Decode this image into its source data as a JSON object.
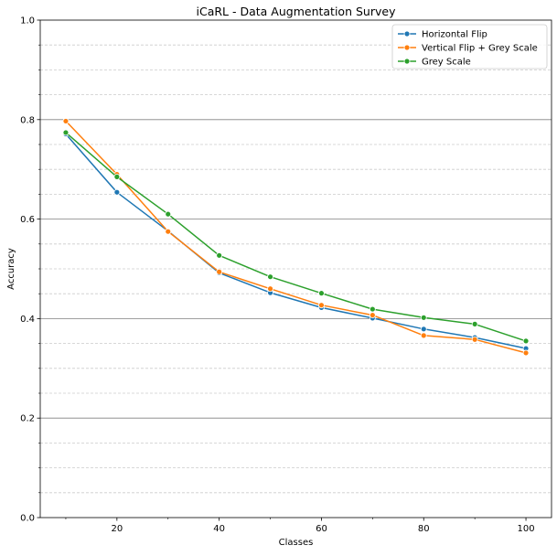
{
  "chart_data": {
    "type": "line",
    "title": "iCaRL - Data Augmentation Survey",
    "xlabel": "Classes",
    "ylabel": "Accuracy",
    "xlim": [
      5,
      105
    ],
    "ylim": [
      0.0,
      1.0
    ],
    "x": [
      10,
      20,
      30,
      40,
      50,
      60,
      70,
      80,
      90,
      100
    ],
    "x_ticks": [
      20,
      40,
      60,
      80,
      100
    ],
    "x_tick_labels": [
      "20",
      "40",
      "60",
      "80",
      "100"
    ],
    "y_major_ticks": [
      0.0,
      0.2,
      0.4,
      0.6,
      0.8,
      1.0
    ],
    "y_tick_labels": [
      "0.0",
      "0.2",
      "0.4",
      "0.6",
      "0.8",
      "1.0"
    ],
    "y_minor_ticks": [
      0.05,
      0.1,
      0.15,
      0.25,
      0.3,
      0.35,
      0.45,
      0.5,
      0.55,
      0.65,
      0.7,
      0.75,
      0.85,
      0.9,
      0.95
    ],
    "grid": "horizontal major solid, minor dashed",
    "legend_position": "upper-right",
    "series": [
      {
        "name": "Horizontal Flip",
        "color": "#1f77b4",
        "values": [
          0.771,
          0.654,
          0.576,
          0.492,
          0.452,
          0.422,
          0.401,
          0.379,
          0.362,
          0.34
        ]
      },
      {
        "name": "Vertical Flip + Grey Scale",
        "color": "#ff7f0e",
        "values": [
          0.797,
          0.69,
          0.575,
          0.494,
          0.46,
          0.427,
          0.407,
          0.366,
          0.358,
          0.331
        ]
      },
      {
        "name": "Grey Scale",
        "color": "#2ca02c",
        "values": [
          0.774,
          0.685,
          0.61,
          0.527,
          0.484,
          0.451,
          0.419,
          0.402,
          0.389,
          0.355
        ]
      }
    ]
  }
}
